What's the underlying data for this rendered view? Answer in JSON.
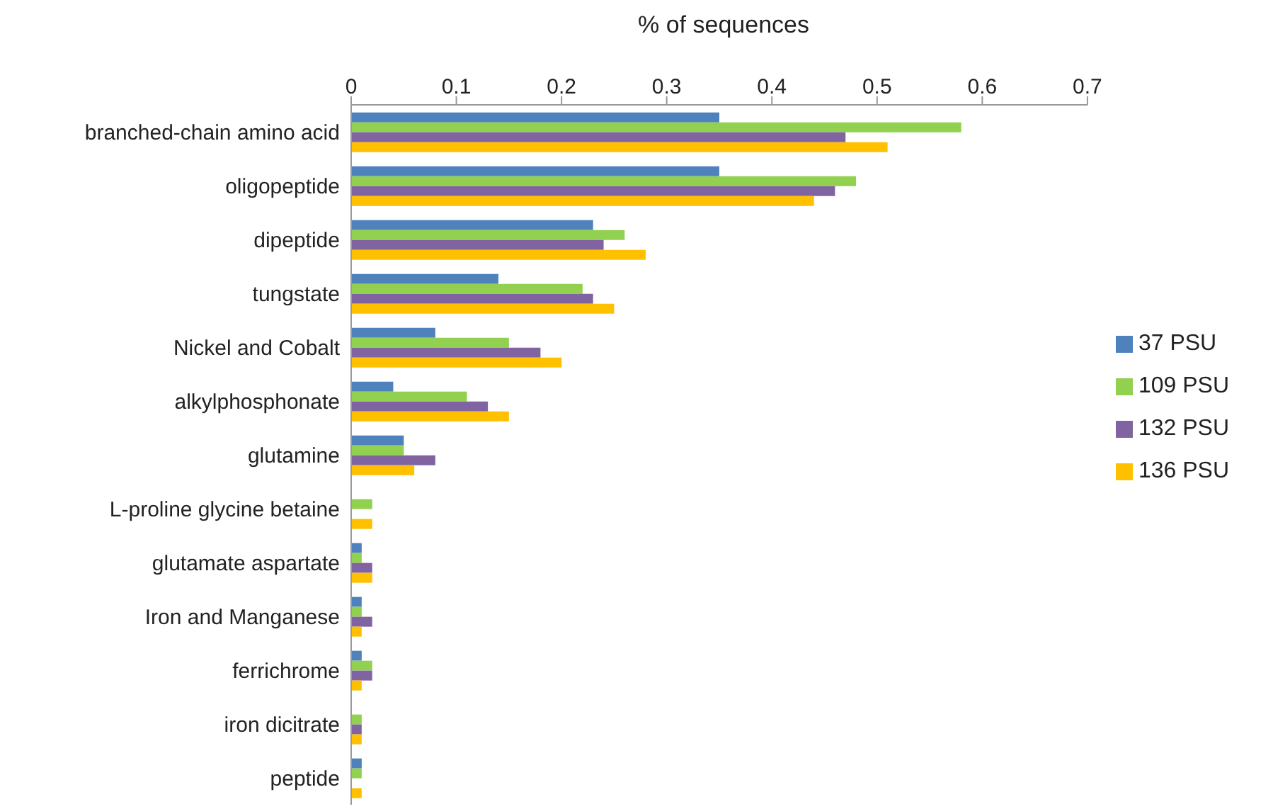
{
  "chart_data": {
    "type": "bar",
    "orientation": "horizontal",
    "xlabel": "% of sequences",
    "categories": [
      "branched-chain amino acid",
      "oligopeptide",
      "dipeptide",
      "tungstate",
      "Nickel and Cobalt",
      "alkylphosphonate",
      "glutamine",
      "L-proline glycine betaine",
      "glutamate aspartate",
      "Iron and Manganese",
      "ferrichrome",
      "iron dicitrate",
      "peptide"
    ],
    "series": [
      {
        "name": "37 PSU",
        "color": "#4f81bd",
        "values": [
          0.35,
          0.35,
          0.23,
          0.14,
          0.08,
          0.04,
          0.05,
          0,
          0.01,
          0.01,
          0.01,
          0,
          0.01
        ]
      },
      {
        "name": "109 PSU",
        "color": "#92d050",
        "values": [
          0.58,
          0.48,
          0.26,
          0.22,
          0.15,
          0.11,
          0.05,
          0.02,
          0.01,
          0.01,
          0.02,
          0.01,
          0.01
        ]
      },
      {
        "name": "132 PSU",
        "color": "#8064a2",
        "values": [
          0.47,
          0.46,
          0.24,
          0.23,
          0.18,
          0.13,
          0.08,
          0,
          0.02,
          0.02,
          0.02,
          0.01,
          0
        ]
      },
      {
        "name": "136 PSU",
        "color": "#ffc000",
        "values": [
          0.51,
          0.44,
          0.28,
          0.25,
          0.2,
          0.15,
          0.06,
          0.02,
          0.02,
          0.01,
          0.01,
          0.01,
          0.01
        ]
      }
    ],
    "xlim": [
      0,
      0.7
    ],
    "xticks": [
      0,
      0.1,
      0.2,
      0.3,
      0.4,
      0.5,
      0.6,
      0.7
    ],
    "grid": false,
    "legend": "right"
  }
}
